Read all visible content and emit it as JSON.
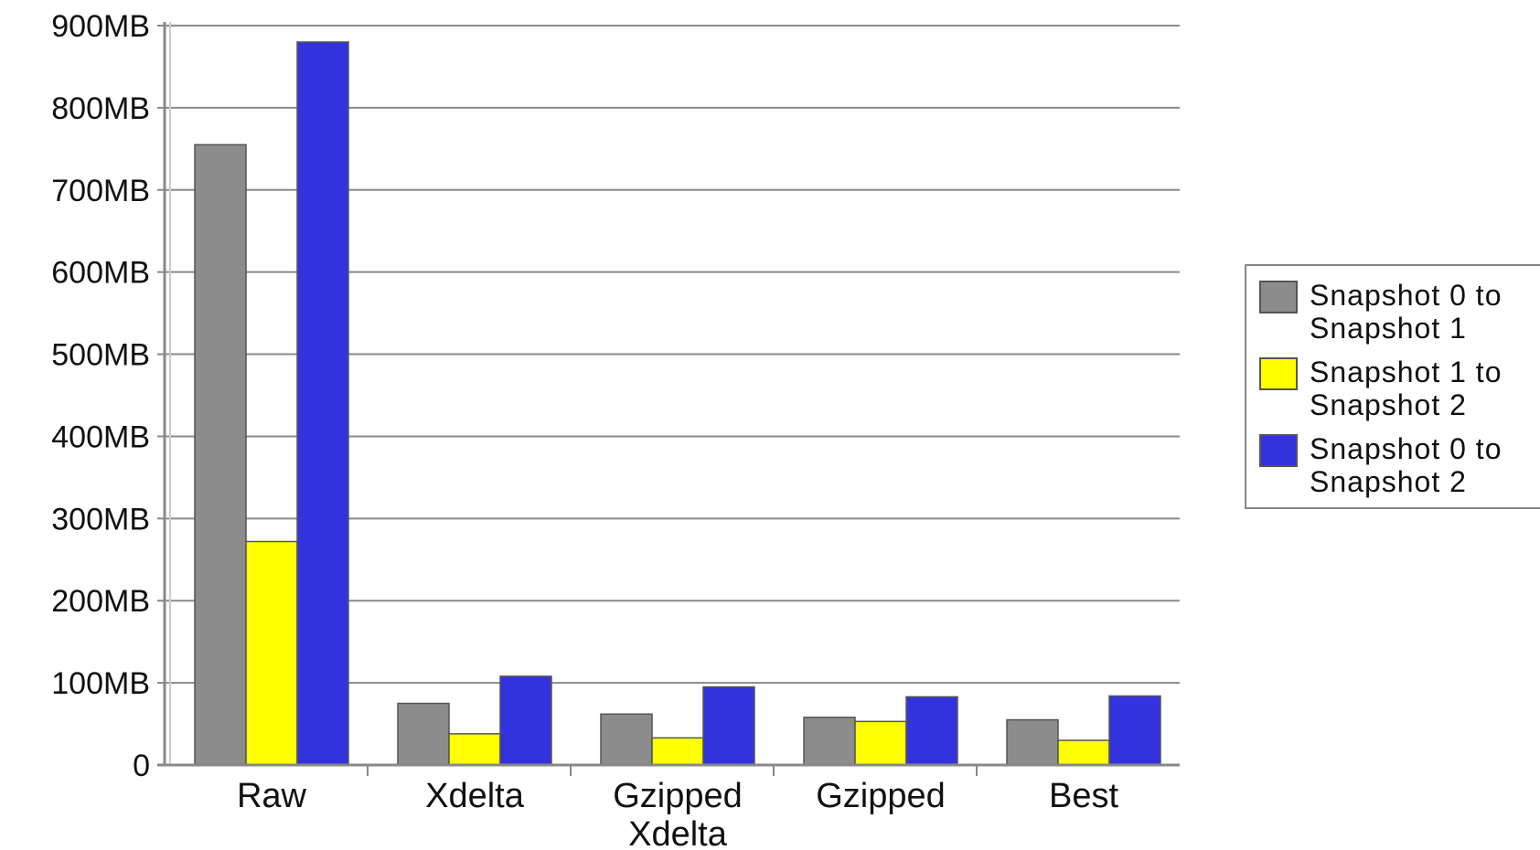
{
  "chart_data": {
    "type": "bar",
    "categories": [
      "Raw",
      "Xdelta",
      "Gzipped Xdelta",
      "Gzipped",
      "Best"
    ],
    "series": [
      {
        "name": "Snapshot 0 to Snapshot 1",
        "values": [
          755,
          75,
          62,
          58,
          55
        ],
        "color": "#8c8c8c"
      },
      {
        "name": "Snapshot 1 to Snapshot 2",
        "values": [
          272,
          38,
          33,
          53,
          30
        ],
        "color": "#ffff00"
      },
      {
        "name": "Snapshot 0 to Snapshot 2",
        "values": [
          880,
          108,
          95,
          83,
          84
        ],
        "color": "#3333dd"
      }
    ],
    "yticks": [
      "0",
      "100MB",
      "200MB",
      "300MB",
      "400MB",
      "500MB",
      "600MB",
      "700MB",
      "800MB",
      "900MB"
    ],
    "ylim": [
      0,
      900
    ],
    "ytick_step": 100,
    "grid": true,
    "legend_position": "right",
    "title": "",
    "xlabel": "",
    "ylabel": ""
  }
}
